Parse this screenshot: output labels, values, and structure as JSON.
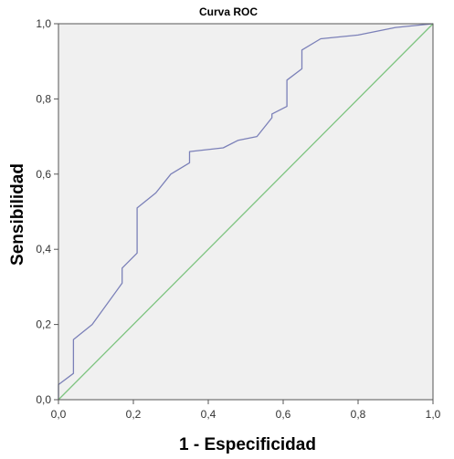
{
  "chart_data": {
    "type": "line",
    "title": "Curva ROC",
    "xlabel": "1 - Especificidad",
    "ylabel": "Sensibilidad",
    "xlim": [
      0,
      1
    ],
    "ylim": [
      0,
      1
    ],
    "x_ticks": [
      "0,0",
      "0,2",
      "0,4",
      "0,6",
      "0,8",
      "1,0"
    ],
    "y_ticks": [
      "0,0",
      "0,2",
      "0,4",
      "0,6",
      "0,8",
      "1,0"
    ],
    "grid": false,
    "background": "#f0f0f0",
    "series": [
      {
        "color": "#7b80b8",
        "x": [
          0.0,
          0.0,
          0.04,
          0.04,
          0.09,
          0.17,
          0.17,
          0.21,
          0.21,
          0.26,
          0.3,
          0.35,
          0.35,
          0.44,
          0.48,
          0.53,
          0.57,
          0.57,
          0.61,
          0.61,
          0.65,
          0.65,
          0.7,
          0.8,
          0.9,
          1.0
        ],
        "y": [
          0.0,
          0.04,
          0.07,
          0.16,
          0.2,
          0.31,
          0.35,
          0.39,
          0.51,
          0.55,
          0.6,
          0.63,
          0.66,
          0.67,
          0.69,
          0.7,
          0.75,
          0.76,
          0.78,
          0.85,
          0.88,
          0.93,
          0.96,
          0.97,
          0.99,
          1.0
        ]
      },
      {
        "color": "#7ec480",
        "x": [
          0,
          1
        ],
        "y": [
          0,
          1
        ]
      }
    ]
  }
}
